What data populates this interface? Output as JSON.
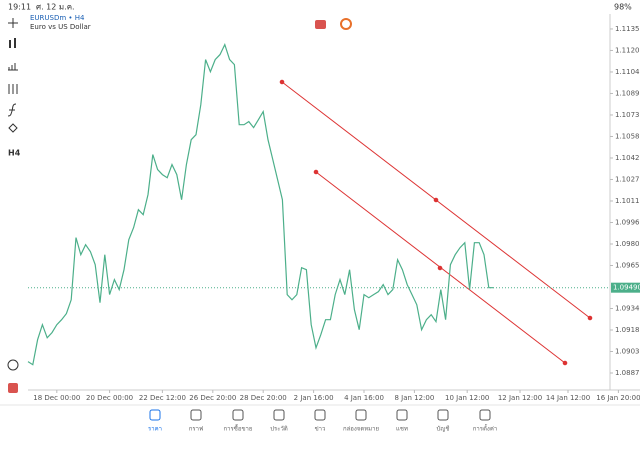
{
  "status_bar": {
    "time": "19:11",
    "date": "ศ. 12 ม.ค.",
    "battery": "98%"
  },
  "toolbar": {
    "timeframe": "H4"
  },
  "chart_data": {
    "type": "line",
    "title": "EURUSDm • H4",
    "subtitle": "Euro vs US Dollar",
    "x": [
      0,
      1,
      2,
      3,
      4,
      5,
      6,
      7,
      8,
      9,
      10,
      11,
      12,
      13,
      14,
      15,
      16,
      17,
      18,
      19,
      20,
      21,
      22,
      23,
      24,
      25,
      26,
      27,
      28,
      29,
      30,
      31,
      32,
      33,
      34,
      35,
      36,
      37,
      38,
      39,
      40,
      41,
      42,
      43,
      44,
      45,
      46,
      47,
      48,
      49,
      50,
      51,
      52,
      53,
      54,
      55,
      56,
      57,
      58,
      59,
      60,
      61,
      62,
      63,
      64,
      65,
      66,
      67,
      68,
      69,
      70,
      71,
      72,
      73,
      74,
      75,
      76,
      77,
      78,
      79,
      80,
      81,
      82,
      83,
      84,
      85,
      86,
      87,
      88,
      89,
      90,
      91,
      92,
      93,
      94,
      95,
      96,
      97
    ],
    "series": [
      {
        "name": "EURUSDm",
        "color": "#4caf8a",
        "values": [
          1.08957,
          1.08935,
          1.09115,
          1.09223,
          1.09129,
          1.09166,
          1.09223,
          1.09259,
          1.09303,
          1.09403,
          1.09851,
          1.09728,
          1.098,
          1.0975,
          1.09656,
          1.09382,
          1.09728,
          1.0944,
          1.09548,
          1.09476,
          1.0962,
          1.09836,
          1.09923,
          1.10052,
          1.10016,
          1.10161,
          1.10449,
          1.10341,
          1.10305,
          1.10283,
          1.10377,
          1.10305,
          1.10124,
          1.10377,
          1.10557,
          1.10593,
          1.10809,
          1.11134,
          1.11047,
          1.11134,
          1.1117,
          1.11242,
          1.11134,
          1.11098,
          1.10665,
          1.10665,
          1.10687,
          1.10644,
          1.10701,
          1.10759,
          1.10557,
          1.10413,
          1.10269,
          1.10124,
          1.0944,
          1.09403,
          1.0944,
          1.09634,
          1.0962,
          1.09223,
          1.09057,
          1.09151,
          1.09259,
          1.09259,
          1.0944,
          1.09548,
          1.0944,
          1.0962,
          1.09331,
          1.09187,
          1.0944,
          1.09418,
          1.0944,
          1.09461,
          1.09512,
          1.0944,
          1.09476,
          1.09692,
          1.0962,
          1.09512,
          1.0944,
          1.09367,
          1.09187,
          1.09259,
          1.09295,
          1.09245,
          1.09476,
          1.09259,
          1.09656,
          1.09728,
          1.09778,
          1.09814,
          1.09476,
          1.09814,
          1.09814,
          1.09728,
          1.0949,
          1.0949
        ]
      }
    ],
    "current_price": {
      "value": 1.0949,
      "label": "1.09490"
    },
    "xlim": [
      0,
      125
    ],
    "xticks": [
      {
        "value": 6,
        "label": "18 Dec 00:00"
      },
      {
        "value": 17,
        "label": "20 Dec 00:00"
      },
      {
        "value": 28,
        "label": "22 Dec 12:00"
      },
      {
        "value": 38.5,
        "label": "26 Dec 20:00"
      },
      {
        "value": 49,
        "label": "28 Dec 20:00"
      },
      {
        "value": 59.5,
        "label": "2 Jan 16:00"
      },
      {
        "value": 70,
        "label": "4 Jan 16:00"
      },
      {
        "value": 80.5,
        "label": "8 Jan 12:00"
      },
      {
        "value": 91.5,
        "label": "10 Jan 12:00"
      },
      {
        "value": 102.5,
        "label": "12 Jan 12:00"
      },
      {
        "value": 112.5,
        "label": "14 Jan 12:00"
      },
      {
        "value": 123,
        "label": "16 Jan 20:00"
      }
    ],
    "ylim": [
      1.08839,
      1.11434
    ],
    "yticks": [
      1.11355,
      {
        "value": 1.112,
        "label": "1.11200"
      },
      1.11045,
      1.1089,
      1.10735,
      {
        "value": 1.1058,
        "label": "1.10580"
      },
      1.10425,
      {
        "value": 1.1027,
        "label": "1.10270"
      },
      1.10115,
      {
        "value": 1.0996,
        "label": "1.09960"
      },
      1.09805,
      {
        "value": 1.0965,
        "label": "1.09650"
      },
      {
        "value": 1.0934,
        "label": "1.09340"
      },
      1.09185,
      {
        "value": 1.0903,
        "label": "1.09030"
      },
      1.08875
    ]
  },
  "tabs": [
    "ราคา",
    "กราฟ",
    "การซื้อขาย",
    "ประวัติ",
    "ข่าว",
    "กล่องจดหมาย",
    "แชท",
    "บัญชี",
    "การตั้งค่า"
  ]
}
